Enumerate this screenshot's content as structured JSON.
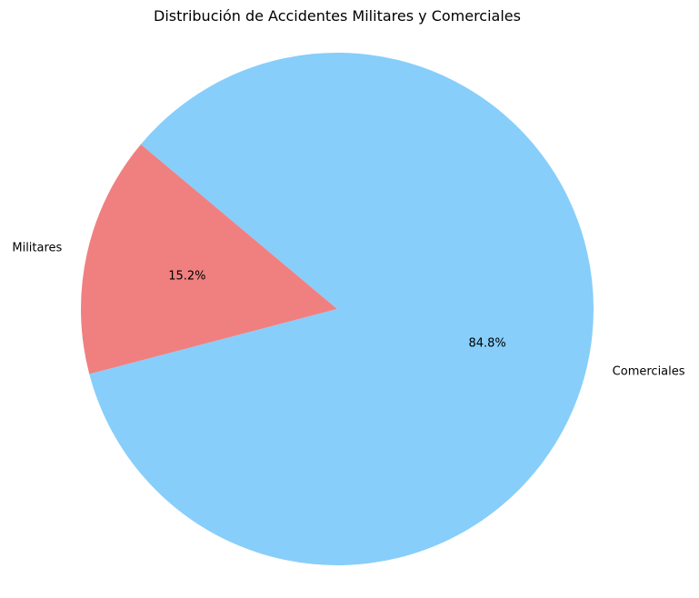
{
  "chart_data": {
    "type": "pie",
    "title": "Distribución de Accidentes Militares y Comerciales",
    "slices": [
      {
        "label": "Militares",
        "value": 15.2,
        "pct_label": "15.2%",
        "color": "#F08080"
      },
      {
        "label": "Comerciales",
        "value": 84.8,
        "pct_label": "84.8%",
        "color": "#87CEFA"
      }
    ]
  }
}
